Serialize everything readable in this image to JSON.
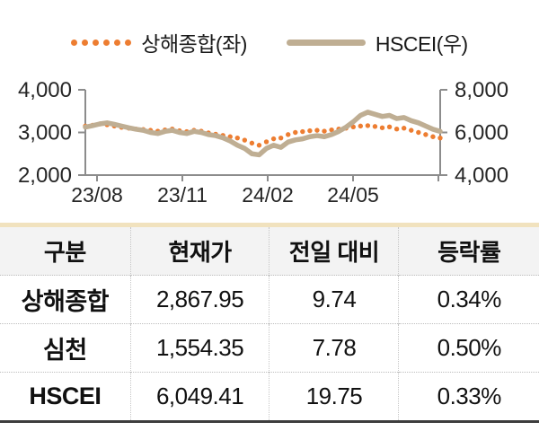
{
  "colors": {
    "orange": "#ED7D31",
    "tan": "#BFAE93",
    "table_top_border": "#F1E2BE",
    "table_header_bg": "#F3F3F3",
    "axis": "#8C8C8C",
    "text": "#262626"
  },
  "chart_data": {
    "type": "line",
    "title": "",
    "xlabel": "",
    "ylabel_left": "",
    "ylabel_right": "",
    "grid": false,
    "legend_position": "top",
    "x_tick_labels": [
      "23/08",
      "23/11",
      "24/02",
      "24/05"
    ],
    "y_left": {
      "ticks": [
        "4,000",
        "3,000",
        "2,000"
      ],
      "min": 2000,
      "max": 4000
    },
    "y_right": {
      "ticks": [
        "8,000",
        "6,000",
        "4,000"
      ],
      "min": 4000,
      "max": 8000
    },
    "series": [
      {
        "name": "상해종합(좌)",
        "axis": "left",
        "style": "dotted",
        "color": "#ED7D31",
        "values": [
          3150,
          3170,
          3200,
          3180,
          3150,
          3120,
          3100,
          3080,
          3070,
          3050,
          3030,
          3060,
          3080,
          3040,
          3020,
          3050,
          3030,
          2990,
          2960,
          2930,
          2900,
          2870,
          2820,
          2750,
          2700,
          2780,
          2850,
          2870,
          2950,
          3000,
          3020,
          3040,
          3050,
          3030,
          3060,
          3080,
          3100,
          3130,
          3150,
          3160,
          3140,
          3110,
          3130,
          3080,
          3100,
          3050,
          3000,
          2950,
          2900,
          2870
        ]
      },
      {
        "name": "HSCEI(우)",
        "axis": "right",
        "style": "solid",
        "color": "#BFAE93",
        "values": [
          6250,
          6320,
          6400,
          6450,
          6380,
          6300,
          6220,
          6150,
          6100,
          6000,
          5950,
          6050,
          6100,
          6000,
          5950,
          6050,
          6000,
          5900,
          5850,
          5750,
          5600,
          5400,
          5250,
          5000,
          4950,
          5250,
          5400,
          5300,
          5550,
          5650,
          5700,
          5800,
          5850,
          5800,
          5900,
          6050,
          6250,
          6500,
          6800,
          6950,
          6850,
          6750,
          6800,
          6650,
          6700,
          6550,
          6450,
          6300,
          6150,
          6050
        ]
      }
    ]
  },
  "table": {
    "headers": [
      "구분",
      "현재가",
      "전일 대비",
      "등락률"
    ],
    "rows": [
      [
        "상해종합",
        "2,867.95",
        "9.74",
        "0.34%"
      ],
      [
        "심천",
        "1,554.35",
        "7.78",
        "0.50%"
      ],
      [
        "HSCEI",
        "6,049.41",
        "19.75",
        "0.33%"
      ]
    ]
  }
}
